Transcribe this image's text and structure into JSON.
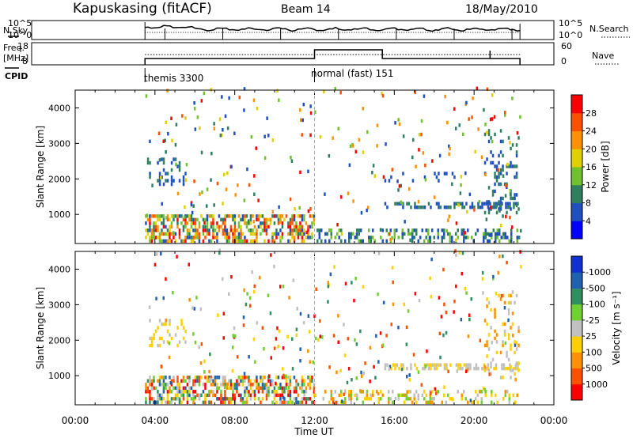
{
  "header": {
    "station": "Kapuskasing (fitACF)",
    "beam": "Beam 14",
    "date": "18/May/2010"
  },
  "noise_panel": {
    "left_label": "N.Sky",
    "right_label": "N.Search",
    "left_ticks": [
      "10^5",
      "10^0"
    ],
    "right_ticks": [
      "10^5",
      "10^0"
    ]
  },
  "freq_panel": {
    "left_label_1": "Freq.",
    "left_label_2": "[MHz]",
    "right_label": "Nave",
    "left_ticks": [
      "18",
      "8"
    ],
    "right_ticks": [
      "60",
      "0"
    ]
  },
  "cpid": {
    "label": "CPID",
    "modes": [
      {
        "name": "themis 3300",
        "start_hour": 3.5
      },
      {
        "name": "normal (fast) 151",
        "start_hour": 12.0
      }
    ]
  },
  "time_axis": {
    "label": "Time UT",
    "ticks": [
      "00:00",
      "04:00",
      "08:00",
      "12:00",
      "16:00",
      "20:00",
      "00:00"
    ]
  },
  "range_axis": {
    "label": "Slant Range [km]",
    "ticks": [
      "1000",
      "2000",
      "3000",
      "4000"
    ]
  },
  "power_colorbar": {
    "label": "Power [dB]",
    "ticks": [
      "4",
      "8",
      "12",
      "16",
      "20",
      "24",
      "28"
    ],
    "colors": [
      "#0000ff",
      "#2050c0",
      "#2f7f5f",
      "#70c030",
      "#e0d000",
      "#ff9000",
      "#ff5000",
      "#ff0000"
    ]
  },
  "velocity_colorbar": {
    "label": "Velocity [m s⁻¹]",
    "ticks": [
      "1000",
      "500",
      "100",
      "25",
      "-25",
      "-100",
      "-500",
      "-1000"
    ],
    "colors": [
      "#1030d0",
      "#2060b0",
      "#2f8f60",
      "#70d030",
      "#c0c0c0",
      "#ffd000",
      "#ff9000",
      "#ff5000",
      "#ff0000"
    ]
  },
  "chart_data": [
    {
      "type": "heatmap",
      "title": "Power",
      "ylabel": "Slant Range [km]",
      "xlabel": "Time UT",
      "xlim_hours": [
        0,
        24
      ],
      "ylim_km": [
        180,
        4500
      ],
      "data_hours": [
        3.5,
        22.3
      ],
      "regions": [
        {
          "t0": 3.5,
          "t1": 12.0,
          "r0": 200,
          "r1": 1000,
          "density": 0.55,
          "values": [
            4,
            8,
            12,
            16,
            20,
            24,
            28
          ]
        },
        {
          "t0": 12.0,
          "t1": 22.3,
          "r0": 200,
          "r1": 600,
          "density": 0.35,
          "values": [
            4,
            8,
            12
          ]
        },
        {
          "t0": 15.5,
          "t1": 22.3,
          "r0": 1150,
          "r1": 1300,
          "density": 0.6,
          "values": [
            4,
            8
          ]
        },
        {
          "t0": 3.7,
          "t1": 5.5,
          "r0": 1800,
          "r1": 2600,
          "density": 0.25,
          "values": [
            4,
            8
          ]
        },
        {
          "t0": 20.5,
          "t1": 22.2,
          "r0": 900,
          "r1": 3400,
          "density": 0.18,
          "values": [
            4,
            8
          ]
        },
        {
          "t0": 15.5,
          "t1": 19.0,
          "r0": 1900,
          "r1": 2200,
          "density": 0.12,
          "values": [
            4
          ]
        }
      ]
    },
    {
      "type": "heatmap",
      "title": "Velocity",
      "ylabel": "Slant Range [km]",
      "xlabel": "Time UT",
      "xlim_hours": [
        0,
        24
      ],
      "ylim_km": [
        180,
        4500
      ],
      "data_hours": [
        3.5,
        22.3
      ],
      "regions": [
        {
          "t0": 3.5,
          "t1": 12.0,
          "r0": 200,
          "r1": 1000,
          "density": 0.55,
          "values": [
            1000,
            500,
            100,
            25,
            -25,
            -100,
            -500,
            -1000
          ]
        },
        {
          "t0": 12.0,
          "t1": 22.3,
          "r0": 200,
          "r1": 600,
          "density": 0.3,
          "values": [
            25,
            -25,
            -100,
            100
          ]
        },
        {
          "t0": 15.5,
          "t1": 22.3,
          "r0": 1150,
          "r1": 1300,
          "density": 0.6,
          "values": [
            25,
            -25
          ]
        },
        {
          "t0": 3.7,
          "t1": 5.5,
          "r0": 1800,
          "r1": 2600,
          "density": 0.2,
          "values": [
            25,
            -25
          ]
        },
        {
          "t0": 20.5,
          "t1": 22.2,
          "r0": 900,
          "r1": 3400,
          "density": 0.15,
          "values": [
            25,
            -25,
            -100
          ]
        }
      ]
    }
  ]
}
